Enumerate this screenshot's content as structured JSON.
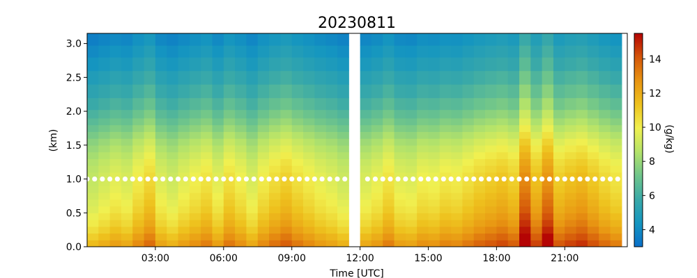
{
  "chart_data": {
    "type": "heatmap",
    "title": "20230811",
    "xlabel": "Time [UTC]",
    "ylabel": "(km)",
    "colorbar_label": "(g/kg)",
    "x_unit": "hours UTC",
    "xlim": [
      0,
      23.75
    ],
    "ylim": [
      0,
      3.15
    ],
    "x_ticks": [
      3,
      6,
      9,
      12,
      15,
      18,
      21
    ],
    "x_tick_labels": [
      "03:00",
      "06:00",
      "09:00",
      "12:00",
      "15:00",
      "18:00",
      "21:00"
    ],
    "y_ticks": [
      0,
      0.5,
      1.0,
      1.5,
      2.0,
      2.5,
      3.0
    ],
    "y_tick_labels": [
      "0.0",
      "0.5",
      "1.0",
      "1.5",
      "2.0",
      "2.5",
      "3.0"
    ],
    "colorbar_range": [
      3,
      15.5
    ],
    "colorbar_ticks": [
      4,
      6,
      8,
      10,
      12,
      14
    ],
    "colorbar_tick_labels": [
      "4",
      "6",
      "8",
      "10",
      "12",
      "14"
    ],
    "colormap": [
      "#0a6fc9",
      "#1596c0",
      "#3aa9a8",
      "#6fc58b",
      "#b4e36a",
      "#f0f050",
      "#eec21e",
      "#e89412",
      "#d4560a",
      "#b40404"
    ],
    "gap_hours": [
      11.6,
      12.0
    ],
    "marker_color": "#ffffff",
    "marker_height_km": 1.0,
    "height_levels_km": [
      0.05,
      0.15,
      0.25,
      0.35,
      0.45,
      0.55,
      0.65,
      0.75,
      0.85,
      0.95,
      1.05,
      1.15,
      1.25,
      1.35,
      1.45,
      1.55,
      1.65,
      1.75,
      1.85,
      1.95,
      2.1,
      2.3,
      2.5,
      2.7,
      2.9,
      3.05
    ],
    "base_profile_gkg": [
      12.6,
      12.1,
      11.6,
      11.2,
      10.9,
      10.6,
      10.4,
      10.2,
      10.0,
      9.9,
      9.8,
      9.6,
      9.4,
      9.1,
      8.8,
      8.5,
      8.1,
      7.7,
      7.3,
      6.9,
      6.4,
      5.9,
      5.4,
      4.9,
      4.5,
      4.1
    ],
    "time_hours": [
      0.25,
      0.75,
      1.25,
      1.75,
      2.25,
      2.75,
      3.25,
      3.75,
      4.25,
      4.75,
      5.25,
      5.75,
      6.25,
      6.75,
      7.25,
      7.75,
      8.25,
      8.75,
      9.25,
      9.75,
      10.25,
      10.75,
      11.25,
      12.25,
      12.75,
      13.25,
      13.75,
      14.25,
      14.75,
      15.25,
      15.75,
      16.25,
      16.75,
      17.25,
      17.75,
      18.25,
      18.75,
      19.25,
      19.75,
      20.25,
      20.75,
      21.25,
      21.75,
      22.25,
      22.75,
      23.25
    ],
    "column_anomaly_gkg": [
      -0.8,
      -0.5,
      -0.2,
      -0.4,
      0.2,
      0.7,
      -0.3,
      -0.6,
      -0.2,
      0.1,
      0.4,
      -0.2,
      0.5,
      0.1,
      -0.4,
      0.2,
      0.6,
      0.9,
      0.5,
      0.2,
      -0.1,
      -0.3,
      -0.6,
      -0.4,
      -0.1,
      0.4,
      -0.2,
      -0.3,
      0.1,
      0.0,
      0.3,
      0.2,
      0.5,
      0.8,
      1.0,
      1.2,
      0.9,
      2.6,
      1.3,
      2.4,
      1.0,
      1.3,
      1.5,
      1.1,
      0.7,
      0.4
    ],
    "markers_hours": [
      0.0,
      0.33,
      0.67,
      1.0,
      1.33,
      1.67,
      2.0,
      2.33,
      2.67,
      3.0,
      3.33,
      3.67,
      4.0,
      4.33,
      4.67,
      5.0,
      5.33,
      5.67,
      6.0,
      6.33,
      6.67,
      7.0,
      7.33,
      7.67,
      8.0,
      8.33,
      8.67,
      9.0,
      9.33,
      9.67,
      10.0,
      10.33,
      10.67,
      11.0,
      11.33,
      12.33,
      12.67,
      13.0,
      13.33,
      13.67,
      14.0,
      14.33,
      14.67,
      15.0,
      15.33,
      15.67,
      16.0,
      16.33,
      16.67,
      17.0,
      17.33,
      17.67,
      18.0,
      18.33,
      18.67,
      19.0,
      19.33,
      19.67,
      20.0,
      20.33,
      20.67,
      21.0,
      21.33,
      21.67,
      22.0,
      22.33,
      22.67,
      23.0,
      23.33,
      23.67
    ]
  }
}
